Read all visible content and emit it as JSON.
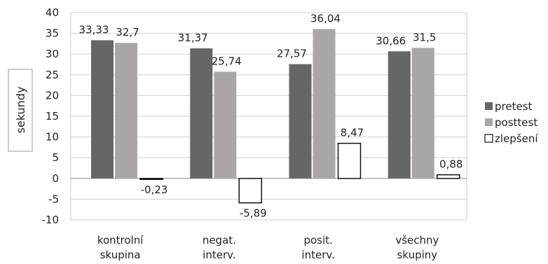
{
  "chart_data": {
    "type": "bar",
    "categories": [
      "kontrolní skupina",
      "negat. interv.",
      "posit. interv.",
      "všechny skupiny"
    ],
    "series": [
      {
        "name": "pretest",
        "values": [
          33.33,
          31.37,
          27.57,
          30.66
        ],
        "labels": [
          "33,33",
          "31,37",
          "27,57",
          "30,66"
        ],
        "color": "#666666"
      },
      {
        "name": "posttest",
        "values": [
          32.7,
          25.74,
          36.04,
          31.5
        ],
        "labels": [
          "32,7",
          "25,74",
          "36,04",
          "31,5"
        ],
        "color": "#aaa6a6"
      },
      {
        "name": "zlepšení",
        "values": [
          -0.23,
          -5.89,
          8.47,
          0.88
        ],
        "labels": [
          "-0,23",
          "-5,89",
          "8,47",
          "0,88"
        ],
        "color": "#ffffff"
      }
    ],
    "title": "",
    "xlabel": "",
    "ylabel": "sekundy",
    "ylim": [
      -10,
      40
    ],
    "yticks": [
      -10,
      -5,
      0,
      5,
      10,
      15,
      20,
      25,
      30,
      35,
      40
    ],
    "grid": true,
    "legend_position": "right"
  }
}
